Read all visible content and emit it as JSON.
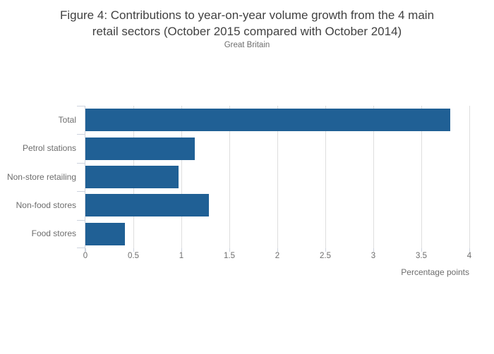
{
  "chart_data": {
    "type": "bar",
    "orientation": "horizontal",
    "title": "Figure 4: Contributions to year-on-year volume growth from the 4 main retail sectors (October 2015 compared with October 2014)",
    "title_lines": [
      "Figure 4: Contributions to year-on-year volume growth from the 4 main",
      "retail sectors (October 2015 compared with October 2014)"
    ],
    "subtitle": "Great Britain",
    "categories": [
      "Total",
      "Petrol stations",
      "Non-store retailing",
      "Non-food stores",
      "Food stores"
    ],
    "values": [
      3.8,
      1.14,
      0.97,
      1.29,
      0.41
    ],
    "xlabel": "Percentage points",
    "xlim": [
      0,
      4
    ],
    "xticks": [
      "0",
      "0.5",
      "1",
      "1.5",
      "2",
      "2.5",
      "3",
      "3.5",
      "4"
    ],
    "xtick_values": [
      0,
      0.5,
      1,
      1.5,
      2,
      2.5,
      3,
      3.5,
      4
    ],
    "grid": true,
    "legend": false,
    "colors": {
      "bar": "#206095",
      "grid": "#dedede",
      "axis": "#cdd3de",
      "title_text": "#414141",
      "label_text": "#6d6d6d"
    }
  }
}
